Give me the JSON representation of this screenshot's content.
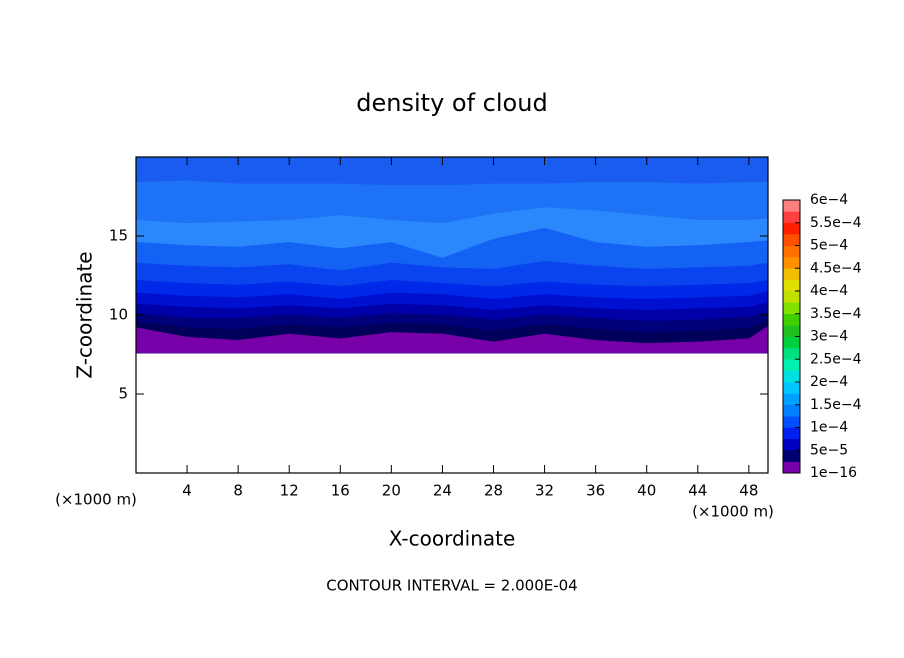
{
  "chart_data": {
    "type": "contour",
    "title": "density of cloud",
    "x_label": "X-coordinate",
    "y_label": "Z-coordinate",
    "x_unit_left": "(×1000 m)",
    "x_unit_right": "(×1000 m)",
    "footer": "CONTOUR INTERVAL = 2.000E-04",
    "xlim": [
      0,
      49.5
    ],
    "ylim": [
      0,
      20
    ],
    "xticks": [
      4,
      8,
      12,
      16,
      20,
      24,
      28,
      32,
      36,
      40,
      44,
      48
    ],
    "yticks": [
      5,
      10,
      15
    ],
    "x": [
      0,
      4,
      8,
      12,
      16,
      20,
      24,
      28,
      32,
      36,
      40,
      44,
      48,
      49.5
    ],
    "cloud_base": 7.6,
    "bands": [
      {
        "color": "#1a5cf0",
        "z_top": [
          20,
          20,
          20,
          20,
          20,
          20,
          20,
          20,
          20,
          20,
          20,
          20,
          20,
          20
        ]
      },
      {
        "color": "#1e72f6",
        "z_top": [
          18.4,
          18.5,
          18.3,
          18.3,
          18.3,
          18.2,
          18.2,
          18.3,
          18.3,
          18.4,
          18.4,
          18.3,
          18.4,
          18.4
        ]
      },
      {
        "color": "#2a88fc",
        "z_top": [
          16.0,
          15.8,
          15.9,
          16.0,
          16.3,
          16.0,
          15.8,
          16.4,
          16.8,
          16.6,
          16.3,
          16.0,
          16.0,
          16.1
        ]
      },
      {
        "color": "#1462f4",
        "z_top": [
          14.6,
          14.4,
          14.3,
          14.6,
          14.2,
          14.6,
          13.6,
          14.8,
          15.5,
          14.6,
          14.3,
          14.4,
          14.6,
          14.7
        ]
      },
      {
        "color": "#0a44ee",
        "z_top": [
          13.3,
          13.1,
          13.0,
          13.2,
          12.8,
          13.3,
          13.0,
          12.9,
          13.4,
          13.1,
          12.9,
          13.0,
          13.1,
          13.3
        ]
      },
      {
        "color": "#0028e8",
        "z_top": [
          12.2,
          12.0,
          11.9,
          12.1,
          11.8,
          12.2,
          12.0,
          11.8,
          12.1,
          11.9,
          11.8,
          11.9,
          12.0,
          12.2
        ]
      },
      {
        "color": "#0010d0",
        "z_top": [
          11.4,
          11.2,
          11.1,
          11.3,
          11.0,
          11.4,
          11.3,
          11.0,
          11.3,
          11.1,
          11.0,
          11.1,
          11.2,
          11.5
        ]
      },
      {
        "color": "#0000a8",
        "z_top": [
          10.7,
          10.5,
          10.4,
          10.6,
          10.4,
          10.7,
          10.6,
          10.3,
          10.6,
          10.4,
          10.3,
          10.4,
          10.5,
          10.8
        ]
      },
      {
        "color": "#00007a",
        "z_top": [
          10.1,
          9.8,
          9.8,
          10.0,
          9.8,
          10.1,
          10.0,
          9.7,
          10.0,
          9.8,
          9.6,
          9.7,
          9.9,
          10.2
        ]
      },
      {
        "color": "#00005a",
        "z_top": [
          9.6,
          9.2,
          9.1,
          9.4,
          9.2,
          9.5,
          9.4,
          9.0,
          9.4,
          9.1,
          8.9,
          9.0,
          9.2,
          9.7
        ]
      },
      {
        "color": "#7800a8",
        "z_top": [
          9.2,
          8.6,
          8.4,
          8.8,
          8.5,
          8.9,
          8.8,
          8.3,
          8.8,
          8.4,
          8.2,
          8.3,
          8.5,
          9.3
        ]
      }
    ],
    "colorbar": {
      "clim": [
        0,
        0.0006
      ],
      "colors": [
        "#7800a8",
        "#000070",
        "#0000c0",
        "#0020f0",
        "#0050ff",
        "#0080ff",
        "#00a0ff",
        "#00c8ff",
        "#00e0e0",
        "#00f0b0",
        "#00e080",
        "#00d040",
        "#20c020",
        "#40d000",
        "#80e000",
        "#c0e000",
        "#e0e000",
        "#f0c000",
        "#ff9000",
        "#ff7000",
        "#ff5000",
        "#ff2000",
        "#ff4040",
        "#ff8080"
      ],
      "ticks": [
        {
          "value": 1e-16,
          "label": "1e−16"
        },
        {
          "value": 5e-05,
          "label": "5e−5"
        },
        {
          "value": 0.0001,
          "label": "1e−4"
        },
        {
          "value": 0.00015,
          "label": "1.5e−4"
        },
        {
          "value": 0.0002,
          "label": "2e−4"
        },
        {
          "value": 0.00025,
          "label": "2.5e−4"
        },
        {
          "value": 0.0003,
          "label": "3e−4"
        },
        {
          "value": 0.00035,
          "label": "3.5e−4"
        },
        {
          "value": 0.0004,
          "label": "4e−4"
        },
        {
          "value": 0.00045,
          "label": "4.5e−4"
        },
        {
          "value": 0.0005,
          "label": "5e−4"
        },
        {
          "value": 0.00055,
          "label": "5.5e−4"
        },
        {
          "value": 0.0006,
          "label": "6e−4"
        }
      ]
    }
  }
}
